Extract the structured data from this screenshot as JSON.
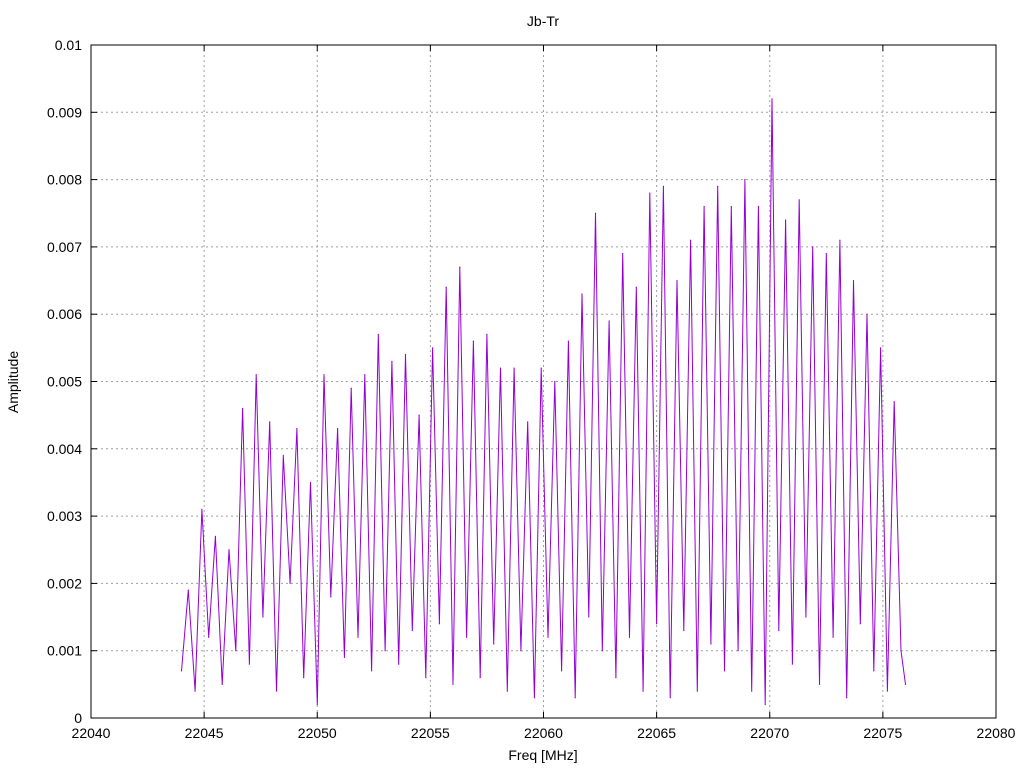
{
  "chart_data": {
    "type": "line",
    "title": "Jb-Tr",
    "xlabel": "Freq [MHz]",
    "ylabel": "Amplitude",
    "xlim": [
      22040,
      22080
    ],
    "ylim": [
      0,
      0.01
    ],
    "x_ticks": [
      "22040",
      "22045",
      "22050",
      "22055",
      "22060",
      "22065",
      "22070",
      "22075",
      "22080"
    ],
    "y_ticks": [
      "0",
      "0.001",
      "0.002",
      "0.003",
      "0.004",
      "0.005",
      "0.006",
      "0.007",
      "0.008",
      "0.009",
      "0.01"
    ],
    "grid": true,
    "series": [
      {
        "color": "#9400d3",
        "x": [
          22044.0,
          22044.3,
          22044.6,
          22044.9,
          22045.2,
          22045.5,
          22045.8,
          22046.1,
          22046.4,
          22046.7,
          22047.0,
          22047.3,
          22047.6,
          22047.9,
          22048.2,
          22048.5,
          22048.8,
          22049.1,
          22049.4,
          22049.7,
          22050.0,
          22050.3,
          22050.6,
          22050.9,
          22051.2,
          22051.5,
          22051.8,
          22052.1,
          22052.4,
          22052.7,
          22053.0,
          22053.3,
          22053.6,
          22053.9,
          22054.2,
          22054.5,
          22054.8,
          22055.1,
          22055.4,
          22055.7,
          22056.0,
          22056.3,
          22056.6,
          22056.9,
          22057.2,
          22057.5,
          22057.8,
          22058.1,
          22058.4,
          22058.7,
          22059.0,
          22059.3,
          22059.6,
          22059.9,
          22060.2,
          22060.5,
          22060.8,
          22061.1,
          22061.4,
          22061.7,
          22062.0,
          22062.3,
          22062.6,
          22062.9,
          22063.2,
          22063.5,
          22063.8,
          22064.1,
          22064.4,
          22064.7,
          22065.0,
          22065.3,
          22065.6,
          22065.9,
          22066.2,
          22066.5,
          22066.8,
          22067.1,
          22067.4,
          22067.7,
          22068.0,
          22068.3,
          22068.6,
          22068.9,
          22069.2,
          22069.5,
          22069.8,
          22070.1,
          22070.4,
          22070.7,
          22071.0,
          22071.3,
          22071.6,
          22071.9,
          22072.2,
          22072.5,
          22072.8,
          22073.1,
          22073.4,
          22073.7,
          22074.0,
          22074.3,
          22074.6,
          22074.9,
          22075.2,
          22075.5,
          22075.8,
          22076.0
        ],
        "y": [
          0.0007,
          0.0019,
          0.0004,
          0.0031,
          0.0012,
          0.0027,
          0.0005,
          0.0025,
          0.001,
          0.0046,
          0.0008,
          0.0051,
          0.0015,
          0.0044,
          0.0004,
          0.0039,
          0.002,
          0.0043,
          0.0006,
          0.0035,
          0.0002,
          0.0051,
          0.0018,
          0.0043,
          0.0009,
          0.0049,
          0.0012,
          0.0051,
          0.0007,
          0.0057,
          0.001,
          0.0053,
          0.0008,
          0.0054,
          0.0013,
          0.0045,
          0.0006,
          0.0055,
          0.0014,
          0.0064,
          0.0005,
          0.0067,
          0.0012,
          0.0056,
          0.0006,
          0.0057,
          0.0011,
          0.0052,
          0.0004,
          0.0052,
          0.001,
          0.0044,
          0.0003,
          0.0052,
          0.0012,
          0.005,
          0.0007,
          0.0056,
          0.0003,
          0.0063,
          0.0015,
          0.0075,
          0.001,
          0.0059,
          0.0006,
          0.0069,
          0.0012,
          0.0064,
          0.0004,
          0.0078,
          0.0014,
          0.0079,
          0.0003,
          0.0065,
          0.0013,
          0.0071,
          0.0004,
          0.0076,
          0.0011,
          0.0079,
          0.0007,
          0.0076,
          0.001,
          0.008,
          0.0004,
          0.0076,
          0.0002,
          0.0092,
          0.0013,
          0.0074,
          0.0008,
          0.0077,
          0.0015,
          0.007,
          0.0005,
          0.0069,
          0.0012,
          0.0071,
          0.0003,
          0.0065,
          0.0014,
          0.006,
          0.0007,
          0.0055,
          0.0004,
          0.0047,
          0.001,
          0.0005
        ]
      }
    ]
  }
}
